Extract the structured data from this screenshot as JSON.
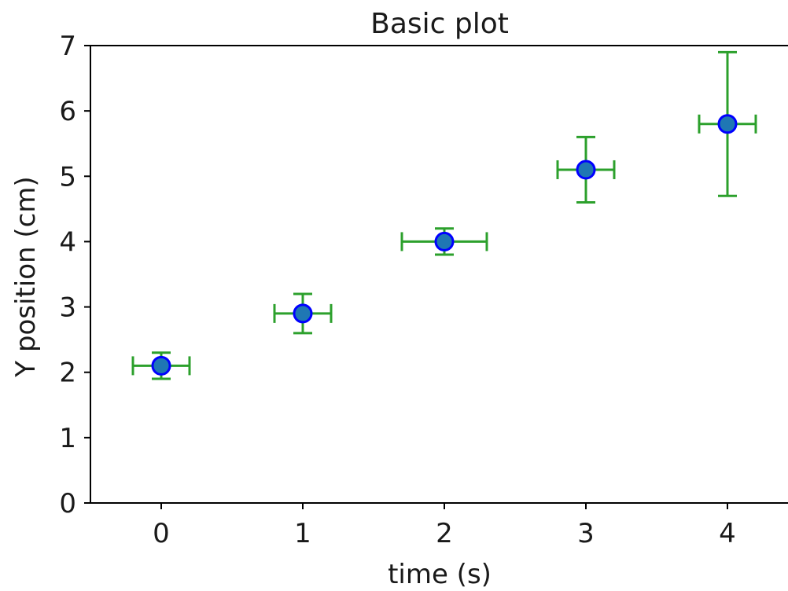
{
  "chart_data": {
    "type": "scatter",
    "title": "Basic plot",
    "xlabel": "time (s)",
    "ylabel": "Y position (cm)",
    "xlim": [
      -0.5,
      4.5
    ],
    "ylim": [
      0,
      7
    ],
    "xticks": [
      0,
      1,
      2,
      3,
      4
    ],
    "xtick_labels": [
      "0",
      "1",
      "2",
      "3",
      "4"
    ],
    "yticks": [
      0,
      1,
      2,
      3,
      4,
      5,
      6,
      7
    ],
    "ytick_labels": [
      "0",
      "1",
      "2",
      "3",
      "4",
      "5",
      "6",
      "7"
    ],
    "grid": false,
    "series": [
      {
        "x": [
          0,
          1,
          2,
          3,
          4
        ],
        "y": [
          2.1,
          2.9,
          4.0,
          5.1,
          5.8
        ],
        "xerr": [
          0.2,
          0.2,
          0.3,
          0.2,
          0.2
        ],
        "yerr": [
          0.2,
          0.3,
          0.2,
          0.5,
          1.1
        ]
      }
    ],
    "colors": {
      "marker_fill": "#1f77b4",
      "marker_edge": "#0000ff",
      "errorbar": "#2ca02c",
      "axis": "#000000"
    }
  }
}
